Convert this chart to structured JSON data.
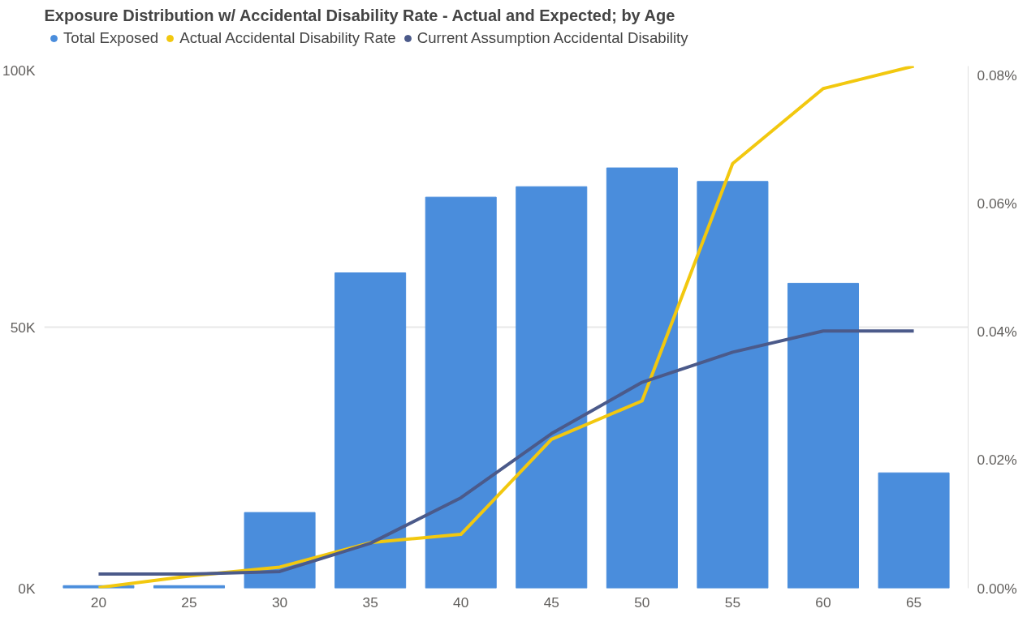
{
  "chart_data": {
    "type": "bar",
    "title": "Exposure Distribution w/ Accidental Disability Rate - Actual and Expected; by Age",
    "categories": [
      "20",
      "25",
      "30",
      "35",
      "40",
      "45",
      "50",
      "55",
      "60",
      "65"
    ],
    "series": [
      {
        "name": "Total Exposed",
        "color": "#4a8ddc",
        "values": [
          0.5,
          0.5,
          14.5,
          60.4,
          74.9,
          76.9,
          80.5,
          77.9,
          58.4,
          22.1
        ]
      },
      {
        "name": "Actual Accidental Disability Rate",
        "type": "line",
        "axis": "y2",
        "color": "#f2c80f",
        "values": [
          0.0001,
          0.0019,
          0.0033,
          0.0071,
          0.0084,
          0.0232,
          0.0292,
          0.0662,
          0.0779,
          0.0814
        ]
      },
      {
        "name": "Current Assumption Accidental Disability",
        "type": "line",
        "axis": "y2",
        "color": "#4b5a8a",
        "values": [
          0.0022,
          0.0022,
          0.0026,
          0.007,
          0.0141,
          0.0241,
          0.0321,
          0.0368,
          0.0401,
          0.0401
        ]
      }
    ],
    "ylim": [
      0,
      100
    ],
    "yticks": [
      {
        "value": 0,
        "label": "0K"
      },
      {
        "value": 50,
        "label": "50K"
      },
      {
        "value": 100,
        "label": "100K"
      }
    ],
    "y2lim": [
      0,
      0.0814
    ],
    "y2ticks": [
      {
        "value": 0,
        "label": "0.00%"
      },
      {
        "value": 0.02,
        "label": "0.02%"
      },
      {
        "value": 0.04,
        "label": "0.04%"
      },
      {
        "value": 0.06,
        "label": "0.06%"
      },
      {
        "value": 0.08,
        "label": "0.08%"
      }
    ],
    "grid": "y",
    "legend": "top left",
    "marker": "none",
    "line_style": "solid"
  }
}
